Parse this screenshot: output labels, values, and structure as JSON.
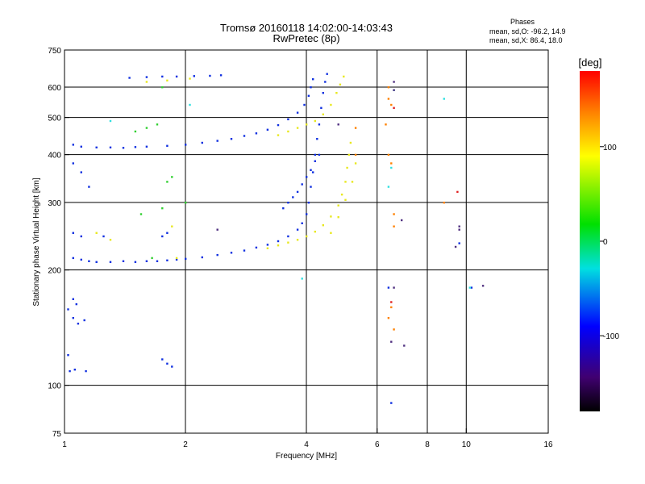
{
  "chart_data": {
    "type": "scatter",
    "title": "Tromsø 20160118 14:02:00-14:03:43",
    "subtitle": "RwPretec (8p)",
    "xlabel": "Frequency [MHz]",
    "ylabel": "Stationary phase Virtual Height [km]",
    "x_scale": "log",
    "y_scale": "log",
    "xlim": [
      1,
      16
    ],
    "ylim": [
      75,
      750
    ],
    "x_ticks": [
      1,
      2,
      4,
      6,
      8,
      10,
      16
    ],
    "y_ticks": [
      75,
      100,
      200,
      300,
      400,
      500,
      600,
      750
    ],
    "x_grid": [
      2,
      4,
      6,
      8,
      10
    ],
    "y_grid": [
      100,
      200,
      300,
      400,
      500,
      600
    ],
    "grid": true,
    "phase_info": {
      "heading": "Phases",
      "line_o": "mean, sd,O: -96.2, 14.9",
      "line_x": "mean, sd,X:  86.4, 18.0"
    },
    "colorbar": {
      "label": "[deg]",
      "ticks": [
        100,
        0,
        -100
      ],
      "range": [
        -180,
        180
      ],
      "position": "right"
    },
    "series": [
      {
        "color": "#1030e0",
        "points": [
          [
            1.03,
            109
          ],
          [
            1.06,
            110
          ],
          [
            1.13,
            109
          ],
          [
            1.02,
            120
          ],
          [
            1.02,
            158
          ],
          [
            1.05,
            150
          ],
          [
            1.08,
            145
          ],
          [
            1.12,
            148
          ],
          [
            1.05,
            168
          ],
          [
            1.07,
            163
          ],
          [
            1.75,
            117
          ],
          [
            1.8,
            114
          ],
          [
            1.85,
            112
          ],
          [
            1.05,
            215
          ],
          [
            1.1,
            213
          ],
          [
            1.15,
            211
          ],
          [
            1.2,
            210
          ],
          [
            1.3,
            210
          ],
          [
            1.4,
            211
          ],
          [
            1.5,
            210
          ],
          [
            1.6,
            211
          ],
          [
            1.7,
            211
          ],
          [
            1.8,
            212
          ],
          [
            1.9,
            213
          ],
          [
            2.0,
            214
          ],
          [
            2.2,
            216
          ],
          [
            2.4,
            219
          ],
          [
            2.6,
            222
          ],
          [
            2.8,
            225
          ],
          [
            3.0,
            229
          ],
          [
            3.2,
            233
          ],
          [
            3.4,
            238
          ],
          [
            3.6,
            245
          ],
          [
            3.8,
            255
          ],
          [
            3.9,
            265
          ],
          [
            4.0,
            280
          ],
          [
            4.05,
            300
          ],
          [
            4.1,
            330
          ],
          [
            4.15,
            360
          ],
          [
            4.2,
            400
          ],
          [
            4.25,
            440
          ],
          [
            4.3,
            480
          ],
          [
            4.35,
            530
          ],
          [
            4.4,
            580
          ],
          [
            4.45,
            620
          ],
          [
            4.5,
            650
          ],
          [
            1.05,
            425
          ],
          [
            1.1,
            420
          ],
          [
            1.2,
            418
          ],
          [
            1.3,
            418
          ],
          [
            1.4,
            417
          ],
          [
            1.5,
            419
          ],
          [
            1.6,
            420
          ],
          [
            1.8,
            422
          ],
          [
            2.0,
            425
          ],
          [
            2.2,
            430
          ],
          [
            2.4,
            435
          ],
          [
            2.6,
            440
          ],
          [
            2.8,
            448
          ],
          [
            3.0,
            455
          ],
          [
            3.2,
            465
          ],
          [
            3.4,
            478
          ],
          [
            3.6,
            495
          ],
          [
            3.8,
            515
          ],
          [
            3.95,
            540
          ],
          [
            4.05,
            570
          ],
          [
            4.1,
            600
          ],
          [
            4.15,
            630
          ],
          [
            1.45,
            635
          ],
          [
            1.6,
            638
          ],
          [
            1.75,
            640
          ],
          [
            1.9,
            640
          ],
          [
            2.1,
            642
          ],
          [
            2.3,
            643
          ],
          [
            2.45,
            645
          ],
          [
            1.05,
            380
          ],
          [
            1.1,
            360
          ],
          [
            1.15,
            330
          ],
          [
            1.05,
            250
          ],
          [
            1.1,
            245
          ],
          [
            1.25,
            245
          ],
          [
            1.75,
            245
          ],
          [
            1.8,
            250
          ],
          [
            3.5,
            290
          ],
          [
            3.6,
            300
          ],
          [
            3.7,
            310
          ],
          [
            3.8,
            320
          ],
          [
            3.9,
            335
          ],
          [
            4.0,
            350
          ],
          [
            4.1,
            365
          ],
          [
            4.2,
            385
          ],
          [
            4.3,
            400
          ],
          [
            6.5,
            90
          ],
          [
            6.4,
            180
          ],
          [
            9.6,
            235
          ],
          [
            10.3,
            180
          ]
        ]
      },
      {
        "color": "#e8e820",
        "points": [
          [
            3.2,
            228
          ],
          [
            3.4,
            232
          ],
          [
            3.6,
            236
          ],
          [
            3.8,
            240
          ],
          [
            4.0,
            245
          ],
          [
            4.2,
            252
          ],
          [
            4.4,
            262
          ],
          [
            4.6,
            276
          ],
          [
            4.8,
            295
          ],
          [
            4.9,
            315
          ],
          [
            5.0,
            340
          ],
          [
            5.05,
            370
          ],
          [
            5.1,
            400
          ],
          [
            5.15,
            430
          ],
          [
            3.4,
            450
          ],
          [
            3.6,
            460
          ],
          [
            3.8,
            470
          ],
          [
            4.0,
            480
          ],
          [
            4.2,
            490
          ],
          [
            4.4,
            510
          ],
          [
            4.6,
            540
          ],
          [
            4.75,
            580
          ],
          [
            4.85,
            610
          ],
          [
            4.95,
            640
          ],
          [
            4.6,
            250
          ],
          [
            4.8,
            275
          ],
          [
            5.0,
            305
          ],
          [
            5.2,
            340
          ],
          [
            5.3,
            380
          ],
          [
            1.6,
            620
          ],
          [
            1.8,
            625
          ],
          [
            2.05,
            632
          ],
          [
            1.9,
            215
          ],
          [
            1.85,
            260
          ],
          [
            1.2,
            250
          ],
          [
            1.3,
            240
          ]
        ]
      },
      {
        "color": "#30d030",
        "points": [
          [
            1.5,
            460
          ],
          [
            1.6,
            470
          ],
          [
            1.7,
            480
          ],
          [
            1.75,
            290
          ],
          [
            1.85,
            350
          ],
          [
            1.65,
            215
          ],
          [
            1.75,
            600
          ],
          [
            2.0,
            300
          ],
          [
            1.55,
            280
          ],
          [
            1.8,
            340
          ]
        ]
      },
      {
        "color": "#ff8000",
        "points": [
          [
            6.4,
            400
          ],
          [
            6.5,
            380
          ],
          [
            6.5,
            540
          ],
          [
            6.4,
            560
          ],
          [
            6.4,
            600
          ],
          [
            6.3,
            480
          ],
          [
            6.6,
            280
          ],
          [
            6.6,
            260
          ],
          [
            6.5,
            160
          ],
          [
            6.4,
            150
          ],
          [
            6.6,
            140
          ],
          [
            5.3,
            470
          ],
          [
            5.3,
            400
          ],
          [
            8.8,
            300
          ]
        ]
      },
      {
        "color": "#e02020",
        "points": [
          [
            6.5,
            165
          ],
          [
            9.5,
            320
          ],
          [
            6.6,
            530
          ]
        ]
      },
      {
        "color": "#30e0e0",
        "points": [
          [
            6.5,
            370
          ],
          [
            6.6,
            590
          ],
          [
            6.4,
            330
          ],
          [
            8.8,
            560
          ],
          [
            10.2,
            180
          ],
          [
            2.05,
            540
          ],
          [
            1.3,
            490
          ],
          [
            3.9,
            190
          ]
        ]
      },
      {
        "color": "#503080",
        "points": [
          [
            6.6,
            180
          ],
          [
            6.6,
            620
          ],
          [
            6.6,
            590
          ],
          [
            7.0,
            127
          ],
          [
            6.5,
            130
          ],
          [
            9.4,
            230
          ],
          [
            9.6,
            255
          ],
          [
            9.6,
            260
          ],
          [
            11.0,
            182
          ],
          [
            6.9,
            270
          ],
          [
            4.8,
            480
          ],
          [
            2.4,
            255
          ]
        ]
      }
    ]
  }
}
